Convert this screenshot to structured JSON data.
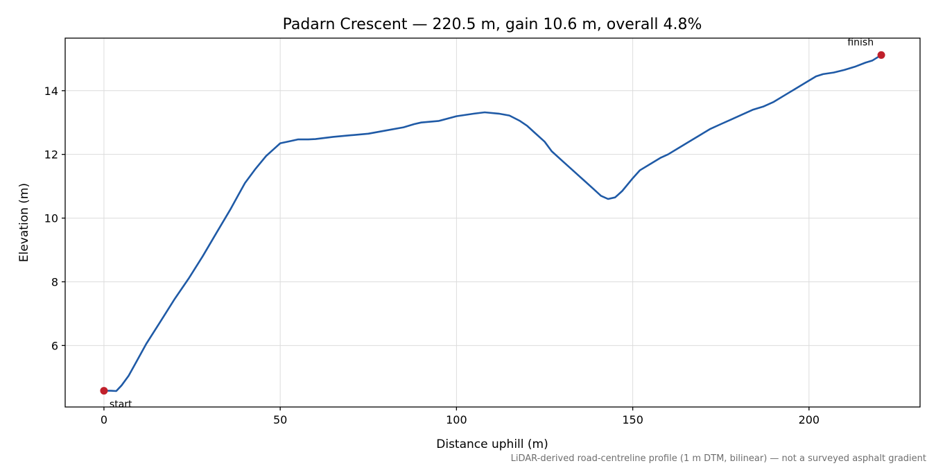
{
  "chart_data": {
    "type": "line",
    "title": "Padarn Crescent — 220.5 m, gain 10.6 m, overall 4.8%",
    "xlabel": "Distance uphill (m)",
    "ylabel": "Elevation (m)",
    "xlim": [
      -11,
      231.5
    ],
    "ylim": [
      4.07,
      15.65
    ],
    "xticks": [
      0,
      50,
      100,
      150,
      200
    ],
    "yticks": [
      6,
      8,
      10,
      12,
      14
    ],
    "grid": true,
    "line_color": "#1f5aa6",
    "marker_color": "#c0202b",
    "series": [
      {
        "x": [
          0,
          2,
          3.5,
          5,
          7,
          9,
          12,
          16,
          20,
          24,
          28,
          32,
          36,
          38,
          40,
          43,
          46,
          48,
          50,
          53,
          55,
          58,
          60,
          65,
          70,
          75,
          80,
          85,
          88,
          90,
          95,
          100,
          105,
          108,
          112,
          115,
          118,
          120,
          122,
          125,
          127,
          130,
          133,
          136,
          139,
          141,
          143,
          145,
          147,
          150,
          152,
          155,
          158,
          160,
          163,
          166,
          169,
          172,
          175,
          178,
          181,
          184,
          187,
          190,
          193,
          196,
          199,
          202,
          204,
          207,
          210,
          213,
          216,
          218,
          220.5
        ],
        "y": [
          4.58,
          4.58,
          4.57,
          4.75,
          5.05,
          5.45,
          6.05,
          6.75,
          7.45,
          8.1,
          8.8,
          9.55,
          10.3,
          10.7,
          11.1,
          11.55,
          11.95,
          12.15,
          12.35,
          12.42,
          12.47,
          12.47,
          12.48,
          12.55,
          12.6,
          12.65,
          12.75,
          12.85,
          12.95,
          13.0,
          13.05,
          13.2,
          13.28,
          13.32,
          13.28,
          13.22,
          13.05,
          12.9,
          12.7,
          12.4,
          12.1,
          11.8,
          11.5,
          11.2,
          10.9,
          10.7,
          10.6,
          10.65,
          10.85,
          11.25,
          11.5,
          11.7,
          11.9,
          12.0,
          12.2,
          12.4,
          12.6,
          12.8,
          12.95,
          13.1,
          13.25,
          13.4,
          13.5,
          13.65,
          13.85,
          14.05,
          14.25,
          14.45,
          14.52,
          14.57,
          14.65,
          14.75,
          14.88,
          14.95,
          15.12
        ]
      }
    ],
    "annotations": [
      {
        "text": "start",
        "x": 0,
        "y": 4.58
      },
      {
        "text": "finish",
        "x": 220.5,
        "y": 15.12
      }
    ],
    "footnote": "LiDAR-derived road-centreline profile (1 m DTM, bilinear) — not a surveyed asphalt gradient"
  }
}
